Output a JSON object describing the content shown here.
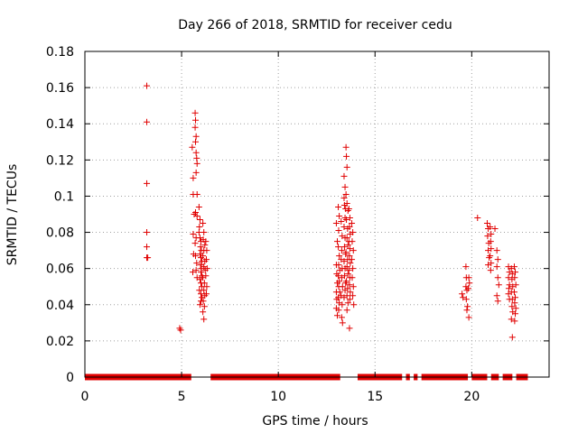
{
  "chart_data": {
    "type": "scatter",
    "title": "Day 266 of 2018, SRMTID for receiver cedu",
    "xlabel": "GPS time / hours",
    "ylabel": "SRMTID / TECUs",
    "xlim": [
      0,
      24
    ],
    "ylim": [
      0,
      0.18
    ],
    "xticks": [
      0,
      5,
      10,
      15,
      20
    ],
    "xtick_labels": [
      "0",
      "5",
      "10",
      "15",
      "20"
    ],
    "yticks": [
      0,
      0.02,
      0.04,
      0.06,
      0.08,
      0.1,
      0.12,
      0.14,
      0.16,
      0.18
    ],
    "ytick_labels": [
      "0",
      "0.02",
      "0.04",
      "0.06",
      "0.08",
      "0.1",
      "0.12",
      "0.14",
      "0.16",
      "0.18"
    ],
    "grid": true,
    "marker": "+",
    "series": [
      {
        "name": "SRMTID",
        "color": "#e00000",
        "zero_segments": [
          [
            0.0,
            5.5
          ],
          [
            6.5,
            13.2
          ],
          [
            14.1,
            16.4
          ],
          [
            16.6,
            16.8
          ],
          [
            17.0,
            17.2
          ],
          [
            17.4,
            19.8
          ],
          [
            20.0,
            20.8
          ],
          [
            21.0,
            21.4
          ],
          [
            21.6,
            22.1
          ],
          [
            22.3,
            22.9
          ]
        ],
        "points": [
          [
            3.2,
            0.161
          ],
          [
            3.2,
            0.141
          ],
          [
            3.2,
            0.107
          ],
          [
            3.2,
            0.08
          ],
          [
            3.2,
            0.072
          ],
          [
            3.2,
            0.066
          ],
          [
            3.25,
            0.066
          ],
          [
            4.9,
            0.027
          ],
          [
            4.95,
            0.026
          ],
          [
            5.55,
            0.127
          ],
          [
            5.6,
            0.11
          ],
          [
            5.6,
            0.101
          ],
          [
            5.65,
            0.09
          ],
          [
            5.6,
            0.079
          ],
          [
            5.62,
            0.068
          ],
          [
            5.58,
            0.058
          ],
          [
            5.7,
            0.146
          ],
          [
            5.72,
            0.142
          ],
          [
            5.7,
            0.138
          ],
          [
            5.75,
            0.133
          ],
          [
            5.72,
            0.13
          ],
          [
            5.75,
            0.124
          ],
          [
            5.78,
            0.121
          ],
          [
            5.8,
            0.118
          ],
          [
            5.75,
            0.113
          ],
          [
            5.8,
            0.101
          ],
          [
            5.72,
            0.091
          ],
          [
            5.8,
            0.089
          ],
          [
            5.75,
            0.077
          ],
          [
            5.7,
            0.074
          ],
          [
            5.72,
            0.067
          ],
          [
            5.78,
            0.063
          ],
          [
            5.75,
            0.059
          ],
          [
            5.8,
            0.055
          ],
          [
            5.9,
            0.094
          ],
          [
            5.95,
            0.087
          ],
          [
            5.92,
            0.083
          ],
          [
            5.9,
            0.08
          ],
          [
            5.95,
            0.077
          ],
          [
            6.0,
            0.075
          ],
          [
            5.98,
            0.072
          ],
          [
            6.02,
            0.07
          ],
          [
            5.95,
            0.068
          ],
          [
            6.0,
            0.066
          ],
          [
            6.05,
            0.064
          ],
          [
            5.98,
            0.062
          ],
          [
            6.02,
            0.06
          ],
          [
            6.0,
            0.058
          ],
          [
            6.05,
            0.056
          ],
          [
            5.95,
            0.054
          ],
          [
            6.0,
            0.052
          ],
          [
            6.05,
            0.05
          ],
          [
            5.92,
            0.048
          ],
          [
            6.0,
            0.046
          ],
          [
            6.05,
            0.044
          ],
          [
            6.0,
            0.042
          ],
          [
            5.95,
            0.04
          ],
          [
            6.1,
            0.085
          ],
          [
            6.15,
            0.08
          ],
          [
            6.12,
            0.076
          ],
          [
            6.2,
            0.073
          ],
          [
            6.15,
            0.07
          ],
          [
            6.1,
            0.067
          ],
          [
            6.2,
            0.064
          ],
          [
            6.15,
            0.061
          ],
          [
            6.22,
            0.059
          ],
          [
            6.1,
            0.055
          ],
          [
            6.18,
            0.052
          ],
          [
            6.15,
            0.048
          ],
          [
            6.2,
            0.045
          ],
          [
            6.12,
            0.042
          ],
          [
            6.18,
            0.039
          ],
          [
            6.1,
            0.036
          ],
          [
            6.15,
            0.032
          ],
          [
            6.25,
            0.075
          ],
          [
            6.3,
            0.07
          ],
          [
            6.28,
            0.065
          ],
          [
            6.32,
            0.06
          ],
          [
            6.25,
            0.056
          ],
          [
            6.3,
            0.05
          ],
          [
            6.28,
            0.046
          ],
          [
            13.0,
            0.085
          ],
          [
            13.05,
            0.075
          ],
          [
            13.0,
            0.062
          ],
          [
            13.02,
            0.057
          ],
          [
            13.05,
            0.052
          ],
          [
            13.0,
            0.047
          ],
          [
            13.02,
            0.043
          ],
          [
            13.0,
            0.038
          ],
          [
            13.05,
            0.034
          ],
          [
            13.1,
            0.094
          ],
          [
            13.15,
            0.089
          ],
          [
            13.12,
            0.081
          ],
          [
            13.1,
            0.072
          ],
          [
            13.15,
            0.067
          ],
          [
            13.12,
            0.062
          ],
          [
            13.18,
            0.059
          ],
          [
            13.1,
            0.056
          ],
          [
            13.15,
            0.053
          ],
          [
            13.12,
            0.05
          ],
          [
            13.18,
            0.047
          ],
          [
            13.1,
            0.044
          ],
          [
            13.15,
            0.041
          ],
          [
            13.12,
            0.037
          ],
          [
            13.25,
            0.086
          ],
          [
            13.3,
            0.078
          ],
          [
            13.28,
            0.07
          ],
          [
            13.25,
            0.065
          ],
          [
            13.3,
            0.06
          ],
          [
            13.28,
            0.055
          ],
          [
            13.32,
            0.05
          ],
          [
            13.25,
            0.045
          ],
          [
            13.3,
            0.04
          ],
          [
            13.28,
            0.033
          ],
          [
            13.32,
            0.03
          ],
          [
            13.4,
            0.111
          ],
          [
            13.45,
            0.105
          ],
          [
            13.4,
            0.099
          ],
          [
            13.42,
            0.095
          ],
          [
            13.48,
            0.093
          ],
          [
            13.45,
            0.088
          ],
          [
            13.4,
            0.083
          ],
          [
            13.45,
            0.077
          ],
          [
            13.42,
            0.072
          ],
          [
            13.48,
            0.068
          ],
          [
            13.4,
            0.064
          ],
          [
            13.45,
            0.06
          ],
          [
            13.42,
            0.056
          ],
          [
            13.48,
            0.052
          ],
          [
            13.45,
            0.048
          ],
          [
            13.4,
            0.044
          ],
          [
            13.5,
            0.127
          ],
          [
            13.52,
            0.122
          ],
          [
            13.55,
            0.116
          ],
          [
            13.5,
            0.101
          ],
          [
            13.55,
            0.096
          ],
          [
            13.6,
            0.092
          ],
          [
            13.52,
            0.087
          ],
          [
            13.58,
            0.082
          ],
          [
            13.55,
            0.077
          ],
          [
            13.6,
            0.073
          ],
          [
            13.5,
            0.069
          ],
          [
            13.58,
            0.065
          ],
          [
            13.55,
            0.061
          ],
          [
            13.6,
            0.057
          ],
          [
            13.52,
            0.053
          ],
          [
            13.58,
            0.049
          ],
          [
            13.55,
            0.045
          ],
          [
            13.6,
            0.041
          ],
          [
            13.55,
            0.037
          ],
          [
            13.65,
            0.093
          ],
          [
            13.7,
            0.088
          ],
          [
            13.68,
            0.083
          ],
          [
            13.72,
            0.079
          ],
          [
            13.65,
            0.075
          ],
          [
            13.7,
            0.071
          ],
          [
            13.68,
            0.067
          ],
          [
            13.72,
            0.063
          ],
          [
            13.65,
            0.059
          ],
          [
            13.7,
            0.055
          ],
          [
            13.68,
            0.051
          ],
          [
            13.72,
            0.047
          ],
          [
            13.7,
            0.043
          ],
          [
            13.68,
            0.027
          ],
          [
            13.8,
            0.085
          ],
          [
            13.85,
            0.08
          ],
          [
            13.82,
            0.075
          ],
          [
            13.88,
            0.07
          ],
          [
            13.8,
            0.065
          ],
          [
            13.85,
            0.06
          ],
          [
            13.82,
            0.055
          ],
          [
            13.88,
            0.05
          ],
          [
            13.85,
            0.045
          ],
          [
            13.9,
            0.04
          ],
          [
            19.5,
            0.046
          ],
          [
            19.55,
            0.044
          ],
          [
            19.7,
            0.061
          ],
          [
            19.72,
            0.055
          ],
          [
            19.7,
            0.05
          ],
          [
            19.75,
            0.048
          ],
          [
            19.72,
            0.043
          ],
          [
            19.78,
            0.039
          ],
          [
            19.75,
            0.037
          ],
          [
            19.85,
            0.055
          ],
          [
            19.88,
            0.052
          ],
          [
            19.82,
            0.049
          ],
          [
            19.85,
            0.033
          ],
          [
            20.3,
            0.088
          ],
          [
            20.8,
            0.085
          ],
          [
            20.85,
            0.082
          ],
          [
            20.82,
            0.078
          ],
          [
            20.88,
            0.074
          ],
          [
            20.85,
            0.07
          ],
          [
            20.9,
            0.066
          ],
          [
            20.85,
            0.062
          ],
          [
            20.95,
            0.083
          ],
          [
            21.0,
            0.079
          ],
          [
            20.98,
            0.075
          ],
          [
            21.0,
            0.071
          ],
          [
            20.95,
            0.067
          ],
          [
            21.0,
            0.063
          ],
          [
            20.98,
            0.059
          ],
          [
            21.2,
            0.082
          ],
          [
            21.3,
            0.07
          ],
          [
            21.35,
            0.065
          ],
          [
            21.3,
            0.061
          ],
          [
            21.35,
            0.055
          ],
          [
            21.4,
            0.051
          ],
          [
            21.3,
            0.045
          ],
          [
            21.35,
            0.042
          ],
          [
            21.9,
            0.061
          ],
          [
            21.95,
            0.058
          ],
          [
            21.9,
            0.055
          ],
          [
            21.95,
            0.051
          ],
          [
            21.92,
            0.049
          ],
          [
            21.9,
            0.046
          ],
          [
            21.95,
            0.043
          ],
          [
            22.05,
            0.06
          ],
          [
            22.1,
            0.057
          ],
          [
            22.08,
            0.054
          ],
          [
            22.12,
            0.05
          ],
          [
            22.05,
            0.047
          ],
          [
            22.1,
            0.043
          ],
          [
            22.08,
            0.039
          ],
          [
            22.12,
            0.036
          ],
          [
            22.05,
            0.032
          ],
          [
            22.1,
            0.022
          ],
          [
            22.2,
            0.061
          ],
          [
            22.25,
            0.058
          ],
          [
            22.22,
            0.055
          ],
          [
            22.28,
            0.051
          ],
          [
            22.2,
            0.047
          ],
          [
            22.25,
            0.044
          ],
          [
            22.22,
            0.041
          ],
          [
            22.28,
            0.038
          ],
          [
            22.25,
            0.035
          ],
          [
            22.22,
            0.031
          ]
        ]
      }
    ]
  }
}
